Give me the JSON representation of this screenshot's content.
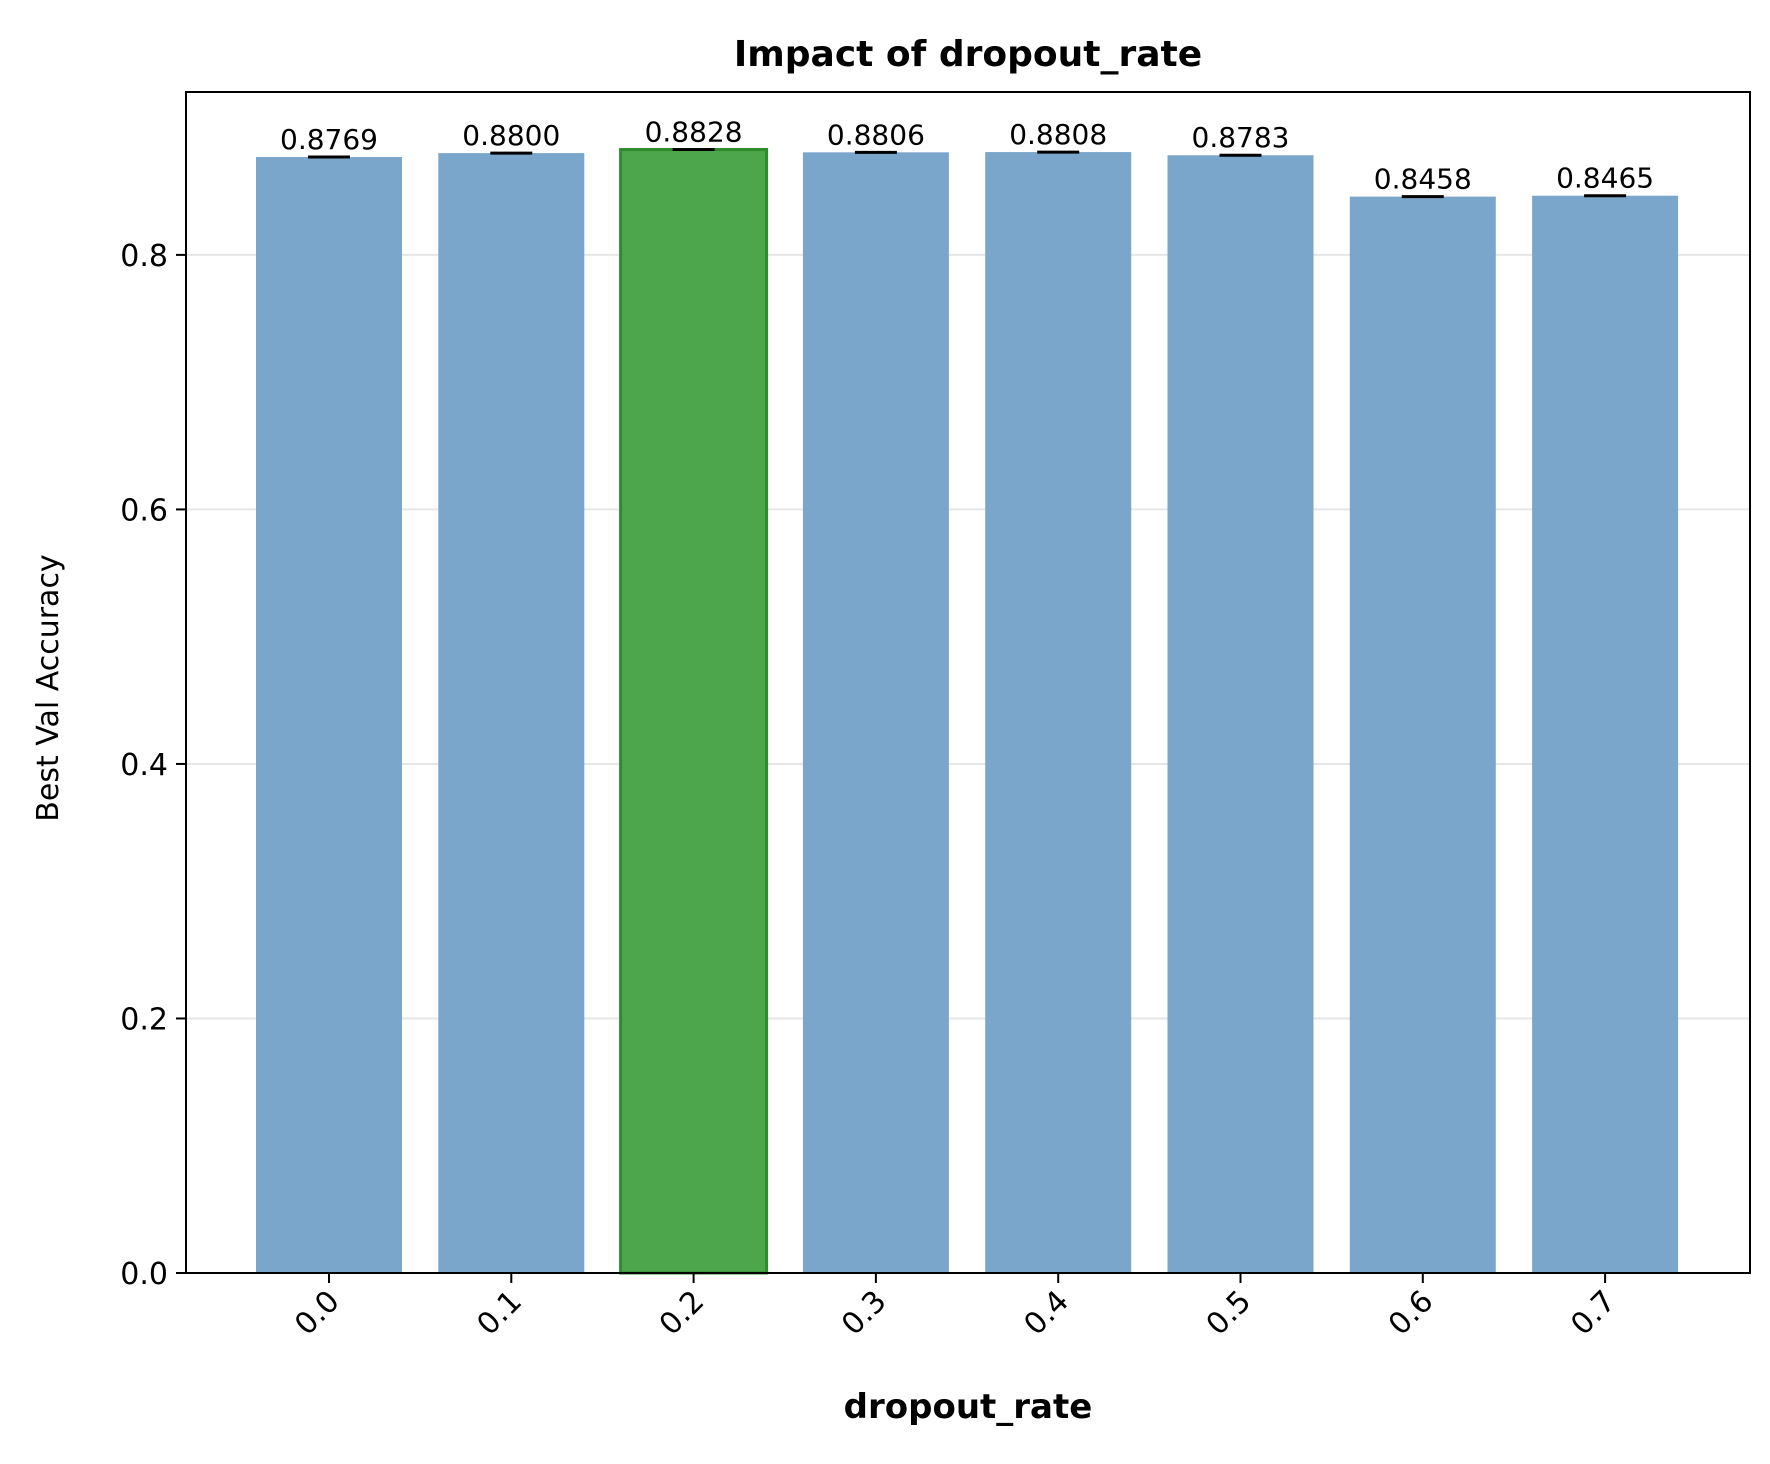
{
  "chart_data": {
    "type": "bar",
    "title": "Impact of dropout_rate",
    "xlabel": "dropout_rate",
    "ylabel": "Best Val Accuracy",
    "categories": [
      "0.0",
      "0.1",
      "0.2",
      "0.3",
      "0.4",
      "0.5",
      "0.6",
      "0.7"
    ],
    "values": [
      0.8769,
      0.88,
      0.8828,
      0.8806,
      0.8808,
      0.8783,
      0.8458,
      0.8465
    ],
    "value_labels": [
      "0.8769",
      "0.8800",
      "0.8828",
      "0.8806",
      "0.8808",
      "0.8783",
      "0.8458",
      "0.8465"
    ],
    "error": [
      0.0005,
      0.0005,
      0.0005,
      0.0005,
      0.0005,
      0.0005,
      0.0005,
      0.0005
    ],
    "highlight_index": 2,
    "ylim": [
      0,
      0.928
    ],
    "yticks": [
      0.0,
      0.2,
      0.4,
      0.6,
      0.8
    ],
    "ytick_labels": [
      "0.0",
      "0.2",
      "0.4",
      "0.6",
      "0.8"
    ],
    "grid": "y",
    "legend": "none",
    "colors": {
      "bar": "#7ba6cb",
      "highlight": "#4ea64c",
      "highlight_edge": "#2e8b2e",
      "grid": "#e6e6e6",
      "axis": "#000000"
    }
  }
}
